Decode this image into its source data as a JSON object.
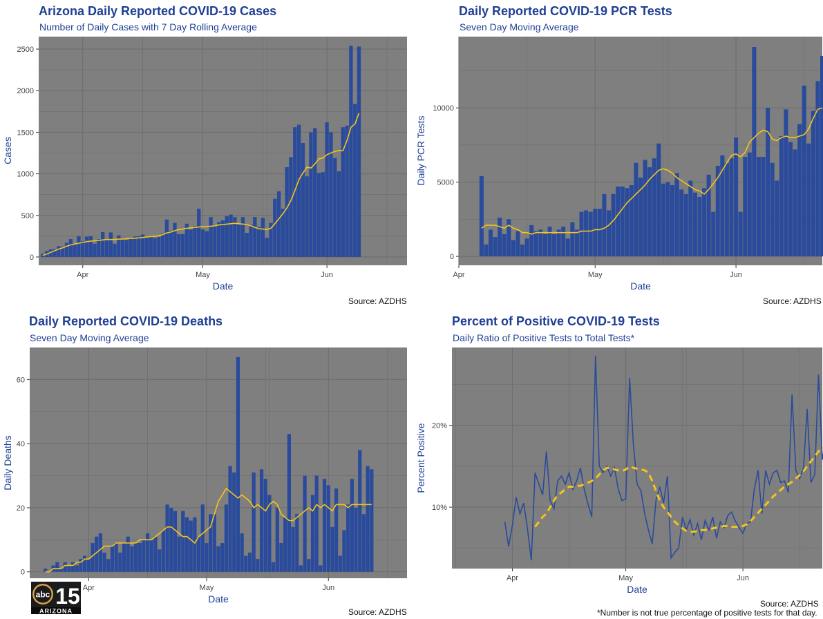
{
  "colors": {
    "bar": "#2a4b9b",
    "avg": "#f5c518",
    "panel_bg": "#7f7f7f",
    "grid": "#6e6e6e",
    "title": "#1f3f94",
    "pos_line": "#2a4b9b"
  },
  "logo": {
    "top": "abc",
    "number": "15",
    "bottom": "ARIZONA"
  },
  "cases": {
    "title": "Arizona Daily Reported COVID-19 Cases",
    "subtitle": "Number of Daily Cases with 7 Day Rolling Average",
    "source": "Source: AZDHS"
  },
  "tests": {
    "title": "Daily Reported COVID-19 PCR Tests",
    "subtitle": "Seven Day Moving Average",
    "source": "Source: AZDHS"
  },
  "deaths": {
    "title": "Daily Reported COVID-19 Deaths",
    "subtitle": "Seven Day Moving Average",
    "source": "Source: AZDHS"
  },
  "positive": {
    "title": "Percent of Positive COVID-19 Tests",
    "subtitle": "Daily Ratio of Positive Tests to Total Tests*",
    "source": "Source: AZDHS",
    "footnote": "*Number is not true percentage of positive tests for that day."
  },
  "chart_data": [
    {
      "id": "cases",
      "type": "bar",
      "title": "Arizona Daily Reported COVID-19 Cases",
      "subtitle": "Number of Daily Cases with 7 Day Rolling Average",
      "xlabel": "Date",
      "ylabel": "Cases",
      "x_ticks": [
        {
          "label": "Apr",
          "day": 0
        },
        {
          "label": "May",
          "day": 30
        },
        {
          "label": "Jun",
          "day": 61
        }
      ],
      "y_ticks": [
        0,
        500,
        1000,
        1500,
        2000,
        2500
      ],
      "xlim": [
        -11,
        81
      ],
      "ylim": [
        -100,
        2650
      ],
      "x_start_day": -10,
      "values": [
        40,
        70,
        90,
        95,
        130,
        125,
        170,
        215,
        160,
        250,
        190,
        245,
        250,
        160,
        215,
        300,
        205,
        295,
        160,
        260,
        225,
        205,
        230,
        245,
        250,
        270,
        240,
        250,
        230,
        240,
        285,
        450,
        315,
        410,
        275,
        275,
        400,
        330,
        370,
        580,
        330,
        310,
        480,
        385,
        420,
        440,
        490,
        510,
        480,
        390,
        480,
        290,
        390,
        480,
        360,
        470,
        230,
        410,
        700,
        790,
        580,
        1080,
        1200,
        1560,
        1590,
        1370,
        970,
        1500,
        1550,
        1010,
        1020,
        1620,
        1500,
        1190,
        1030,
        1560,
        1580,
        2540,
        1840,
        2530
      ],
      "avg": [
        20,
        35,
        55,
        75,
        95,
        110,
        130,
        145,
        155,
        165,
        175,
        185,
        190,
        195,
        200,
        205,
        210,
        210,
        210,
        215,
        215,
        220,
        225,
        225,
        230,
        235,
        240,
        245,
        250,
        255,
        270,
        290,
        300,
        315,
        330,
        335,
        345,
        350,
        355,
        360,
        365,
        365,
        370,
        375,
        385,
        390,
        395,
        400,
        405,
        400,
        395,
        390,
        375,
        355,
        340,
        335,
        330,
        345,
        400,
        460,
        520,
        590,
        680,
        800,
        930,
        1010,
        1080,
        1070,
        1120,
        1180,
        1190,
        1230,
        1250,
        1270,
        1280,
        1280,
        1400,
        1560,
        1600,
        1730
      ]
    },
    {
      "id": "tests",
      "type": "bar",
      "title": "Daily Reported COVID-19 PCR Tests",
      "subtitle": "Seven Day Moving Average",
      "xlabel": "Date",
      "ylabel": "Daily PCR Tests",
      "x_ticks": [
        {
          "label": "Apr",
          "day": 0
        },
        {
          "label": "May",
          "day": 30
        },
        {
          "label": "Jun",
          "day": 61
        }
      ],
      "y_ticks": [
        0,
        5000,
        10000
      ],
      "xlim": [
        0,
        80
      ],
      "ylim": [
        -600,
        14800
      ],
      "x_start_day": 5,
      "values": [
        5400,
        800,
        1800,
        1300,
        2600,
        1500,
        2500,
        1100,
        1700,
        800,
        1200,
        2100,
        1700,
        1800,
        1500,
        2000,
        1500,
        1800,
        2000,
        1200,
        2300,
        1800,
        3000,
        3100,
        3000,
        3200,
        3200,
        4200,
        3100,
        4200,
        4700,
        4700,
        4600,
        4800,
        6300,
        5300,
        6500,
        6000,
        6600,
        7600,
        4900,
        5000,
        4800,
        5600,
        4500,
        4200,
        5100,
        4300,
        4000,
        4600,
        5500,
        3000,
        6100,
        6800,
        6300,
        6600,
        8000,
        3000,
        6700,
        7000,
        14100,
        6700,
        6700,
        10000,
        6300,
        5100,
        8100,
        9900,
        7700,
        7200,
        8900,
        11500,
        7600,
        9800,
        11800,
        13500
      ],
      "avg": [
        1900,
        2100,
        2100,
        2100,
        2000,
        1900,
        2100,
        1900,
        1800,
        1600,
        1600,
        1500,
        1600,
        1600,
        1600,
        1600,
        1600,
        1600,
        1600,
        1600,
        1600,
        1600,
        1700,
        1700,
        1700,
        1800,
        1800,
        1900,
        2100,
        2400,
        2800,
        3200,
        3600,
        3900,
        4200,
        4500,
        4800,
        5200,
        5500,
        5800,
        5900,
        5800,
        5600,
        5300,
        5100,
        4900,
        4700,
        4500,
        4400,
        4200,
        4500,
        4900,
        5300,
        5800,
        6300,
        6800,
        6900,
        6700,
        7000,
        7700,
        8000,
        8300,
        8500,
        8400,
        7900,
        7800,
        8000,
        8100,
        8000,
        8000,
        8100,
        8200,
        8600,
        9300,
        9900,
        10000
      ]
    },
    {
      "id": "deaths",
      "type": "bar",
      "title": "Daily Reported COVID-19 Deaths",
      "subtitle": "Seven Day Moving Average",
      "xlabel": "Date",
      "ylabel": "Daily Deaths",
      "x_ticks": [
        {
          "label": "Apr",
          "day": 0
        },
        {
          "label": "May",
          "day": 30
        },
        {
          "label": "Jun",
          "day": 61
        }
      ],
      "y_ticks": [
        0,
        20,
        40,
        60
      ],
      "xlim": [
        -15,
        81
      ],
      "ylim": [
        -2,
        70
      ],
      "x_start_day": -11,
      "values": [
        1,
        0,
        2,
        3,
        1,
        3,
        2,
        3,
        2,
        4,
        5,
        4,
        9,
        11,
        12,
        6,
        4,
        8,
        9,
        6,
        9,
        11,
        8,
        9,
        9,
        10,
        12,
        10,
        11,
        7,
        13,
        21,
        20,
        19,
        11,
        19,
        17,
        16,
        17,
        11,
        21,
        9,
        18,
        18,
        8,
        9,
        21,
        33,
        31,
        67,
        12,
        5,
        6,
        31,
        4,
        32,
        29,
        24,
        3,
        20,
        9,
        17,
        43,
        14,
        18,
        2,
        30,
        4,
        24,
        30,
        2,
        29,
        27,
        14,
        26,
        5,
        13,
        21,
        29,
        20,
        38,
        18,
        33,
        32
      ],
      "avg": [
        0,
        0,
        1,
        1,
        1,
        2,
        2,
        2,
        3,
        3,
        4,
        4,
        5,
        6,
        7,
        8,
        8,
        8,
        9,
        9,
        9,
        9,
        9,
        9,
        10,
        10,
        10,
        10,
        11,
        12,
        13,
        14,
        14,
        13,
        12,
        11,
        11,
        10,
        9,
        11,
        12,
        13,
        14,
        18,
        22,
        24,
        26,
        25,
        24,
        23,
        24,
        23,
        22,
        20,
        21,
        20,
        19,
        21,
        22,
        21,
        18,
        17,
        16,
        16,
        17,
        18,
        19,
        20,
        19,
        21,
        20,
        21,
        20,
        19,
        21,
        21,
        21,
        20,
        21,
        21,
        21,
        21,
        21,
        21
      ]
    },
    {
      "id": "positive",
      "type": "line",
      "title": "Percent of Positive COVID-19 Tests",
      "subtitle": "Daily Ratio of Positive Tests to Total Tests*",
      "xlabel": "Date",
      "ylabel": "Percent Positive",
      "x_ticks": [
        {
          "label": "Apr",
          "day": 0
        },
        {
          "label": "May",
          "day": 30
        },
        {
          "label": "Jun",
          "day": 61
        }
      ],
      "y_ticks": [
        {
          "label": "10%",
          "value": 0.1
        },
        {
          "label": "20%",
          "value": 0.2
        }
      ],
      "xlim": [
        -16,
        82
      ],
      "ylim": [
        0.025,
        0.295
      ],
      "x_start_day": -2,
      "series": [
        {
          "role": "daily",
          "values": [
            0.082,
            0.052,
            0.078,
            0.112,
            0.092,
            0.105,
            0.073,
            0.035,
            0.142,
            0.128,
            0.115,
            0.168,
            0.108,
            0.098,
            0.132,
            0.138,
            0.128,
            0.142,
            0.122,
            0.132,
            0.148,
            0.122,
            0.104,
            0.088,
            0.285,
            0.15,
            0.142,
            0.15,
            0.138,
            0.148,
            0.122,
            0.108,
            0.11,
            0.258,
            0.178,
            0.128,
            0.12,
            0.092,
            0.072,
            0.055,
            0.108,
            0.125,
            0.105,
            0.138,
            0.038,
            0.045,
            0.05,
            0.088,
            0.072,
            0.085,
            0.066,
            0.08,
            0.06,
            0.084,
            0.072,
            0.088,
            0.062,
            0.082,
            0.075,
            0.09,
            0.094,
            0.083,
            0.075,
            0.068,
            0.08,
            0.082,
            0.122,
            0.145,
            0.092,
            0.145,
            0.128,
            0.142,
            0.145,
            0.13,
            0.132,
            0.118,
            0.238,
            0.145,
            0.135,
            0.148,
            0.22,
            0.13,
            0.14,
            0.262,
            0.158,
            0.185
          ]
        },
        {
          "role": "average",
          "values": [
            null,
            null,
            null,
            null,
            null,
            null,
            null,
            null,
            0.076,
            0.082,
            0.088,
            0.092,
            0.1,
            0.108,
            0.115,
            0.118,
            0.122,
            0.125,
            0.125,
            0.126,
            0.126,
            0.128,
            0.13,
            0.132,
            0.135,
            0.14,
            0.145,
            0.148,
            0.148,
            0.146,
            0.145,
            0.144,
            0.146,
            0.15,
            0.148,
            0.147,
            0.146,
            0.145,
            0.142,
            0.132,
            0.12,
            0.108,
            0.1,
            0.094,
            0.088,
            0.082,
            0.078,
            0.074,
            0.071,
            0.07,
            0.07,
            0.071,
            0.072,
            0.072,
            0.073,
            0.074,
            0.075,
            0.076,
            0.077,
            0.077,
            0.076,
            0.076,
            0.076,
            0.077,
            0.079,
            0.083,
            0.088,
            0.093,
            0.098,
            0.103,
            0.108,
            0.113,
            0.117,
            0.121,
            0.125,
            0.128,
            0.131,
            0.135,
            0.139,
            0.144,
            0.15,
            0.156,
            0.162,
            0.168,
            0.173,
            0.172
          ]
        }
      ]
    }
  ]
}
